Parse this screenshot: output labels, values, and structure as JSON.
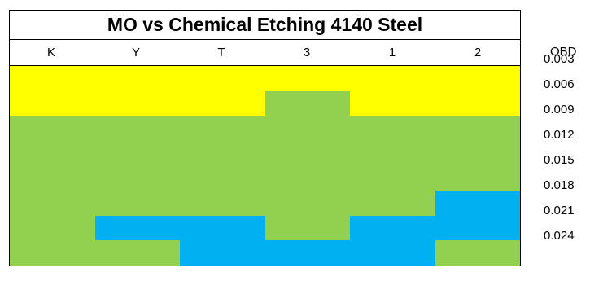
{
  "chart_data": {
    "type": "heatmap",
    "title": "MO vs Chemical Etching 4140 Steel",
    "columns": [
      "K",
      "Y",
      "T",
      "3",
      "1",
      "2"
    ],
    "rows": [
      "0.003",
      "0.006",
      "0.009",
      "0.012",
      "0.015",
      "0.018",
      "0.021",
      "0.024"
    ],
    "right_axis_label": "OBD",
    "colors": {
      "yellow": "#ffff00",
      "green": "#92d050",
      "blue": "#00b0f0"
    },
    "cells": [
      [
        "yellow",
        "yellow",
        "yellow",
        "yellow",
        "yellow",
        "yellow"
      ],
      [
        "yellow",
        "yellow",
        "yellow",
        "green",
        "yellow",
        "yellow"
      ],
      [
        "green",
        "green",
        "green",
        "green",
        "green",
        "green"
      ],
      [
        "green",
        "green",
        "green",
        "green",
        "green",
        "green"
      ],
      [
        "green",
        "green",
        "green",
        "green",
        "green",
        "green"
      ],
      [
        "green",
        "green",
        "green",
        "green",
        "green",
        "blue"
      ],
      [
        "green",
        "blue",
        "blue",
        "green",
        "blue",
        "blue"
      ],
      [
        "green",
        "green",
        "blue",
        "blue",
        "blue",
        "green"
      ]
    ]
  }
}
